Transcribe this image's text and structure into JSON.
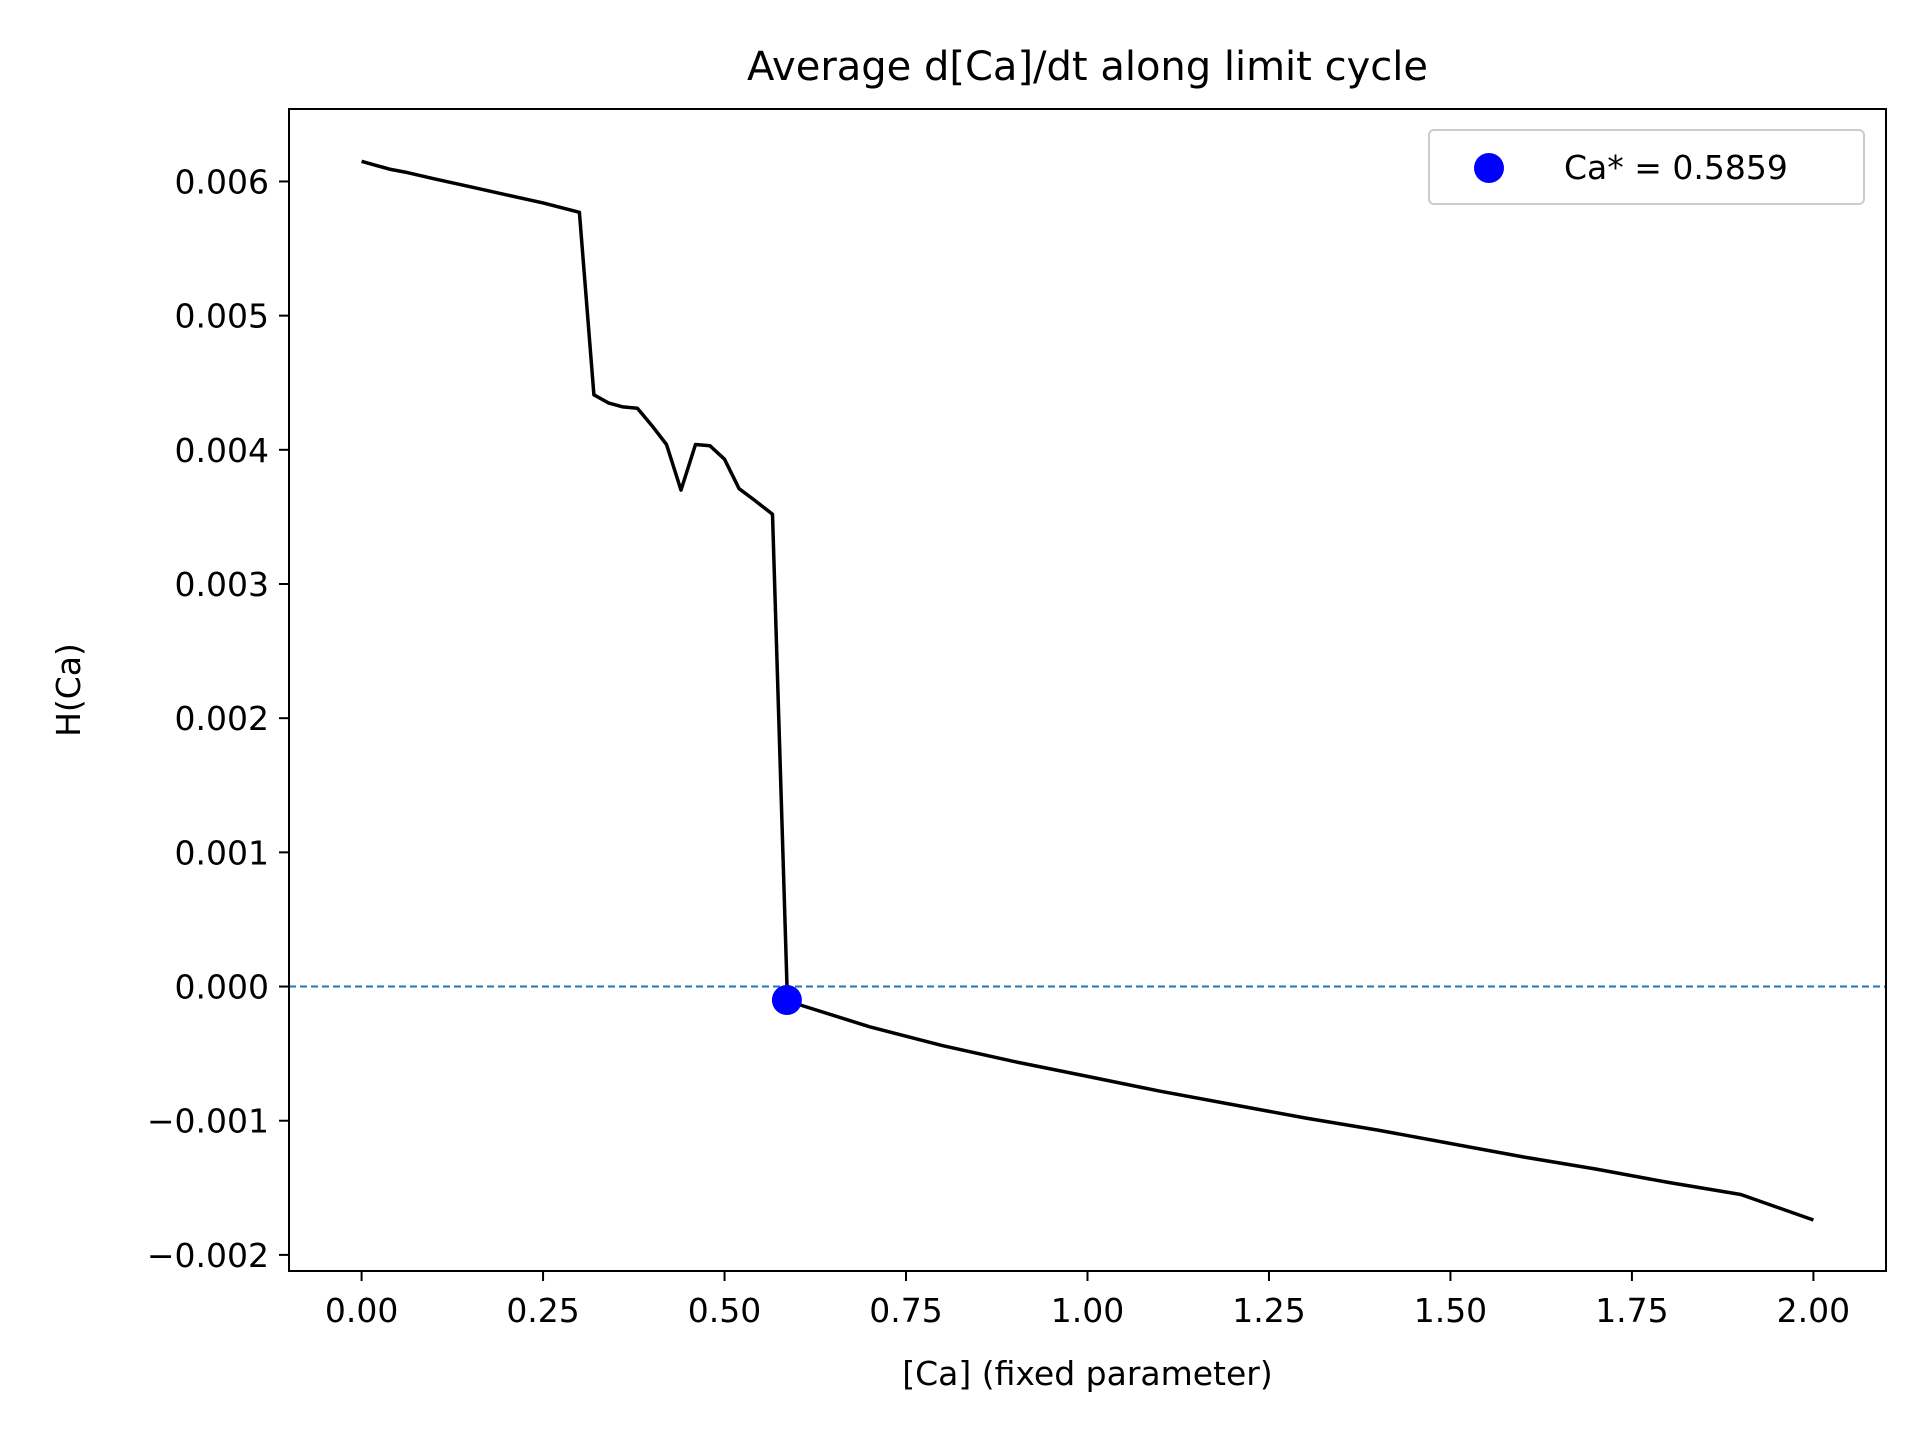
{
  "chart_data": {
    "type": "line",
    "title": "Average d[Ca]/dt along limit cycle",
    "xlabel": "[Ca] (fixed parameter)",
    "ylabel": "H(Ca)",
    "xlim": [
      -0.1,
      2.1
    ],
    "ylim": [
      -0.00212,
      0.00654
    ],
    "xticks": [
      0.0,
      0.25,
      0.5,
      0.75,
      1.0,
      1.25,
      1.5,
      1.75,
      2.0
    ],
    "xtick_labels": [
      "0.00",
      "0.25",
      "0.50",
      "0.75",
      "1.00",
      "1.25",
      "1.50",
      "1.75",
      "2.00"
    ],
    "yticks": [
      -0.002,
      -0.001,
      0.0,
      0.001,
      0.002,
      0.003,
      0.004,
      0.005,
      0.006
    ],
    "ytick_labels": [
      "−0.002",
      "−0.001",
      "0.000",
      "0.001",
      "0.002",
      "0.003",
      "0.004",
      "0.005",
      "0.006"
    ],
    "grid": false,
    "legend_position": "top-right",
    "reference_line": {
      "y": 0.0,
      "style": "dashed",
      "color": "#1f77b4"
    },
    "series": [
      {
        "color": "#000000",
        "x": [
          0.0,
          0.02,
          0.04,
          0.06,
          0.1,
          0.15,
          0.2,
          0.25,
          0.3,
          0.32,
          0.34,
          0.36,
          0.38,
          0.4,
          0.42,
          0.44,
          0.46,
          0.48,
          0.5,
          0.52,
          0.54,
          0.566,
          0.586,
          0.6,
          0.7,
          0.8,
          0.9,
          1.0,
          1.1,
          1.2,
          1.3,
          1.4,
          1.5,
          1.6,
          1.7,
          1.8,
          1.9,
          2.0
        ],
        "y": [
          0.00615,
          0.00612,
          0.00609,
          0.00607,
          0.00602,
          0.00596,
          0.0059,
          0.00584,
          0.00577,
          0.00441,
          0.00435,
          0.00432,
          0.00431,
          0.00418,
          0.00404,
          0.0037,
          0.00404,
          0.00403,
          0.00393,
          0.00371,
          0.00363,
          0.00352,
          0.0,
          -0.00013,
          -0.0003,
          -0.00044,
          -0.00056,
          -0.00067,
          -0.00078,
          -0.00088,
          -0.00098,
          -0.00107,
          -0.00117,
          -0.00127,
          -0.00136,
          -0.00146,
          -0.00155,
          -0.00174
        ]
      }
    ],
    "marker": {
      "label": "Ca* = 0.5859",
      "x": 0.5859,
      "y": -0.0001,
      "color": "#0000ff"
    }
  }
}
